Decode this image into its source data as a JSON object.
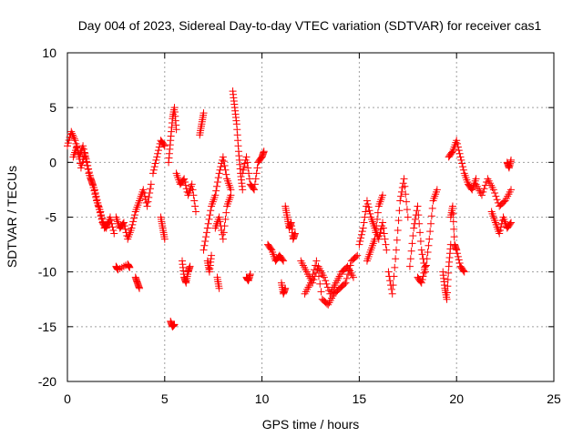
{
  "chart_data": {
    "type": "scatter",
    "title": "Day 004 of 2023, Sidereal Day-to-day VTEC variation (SDTVAR) for receiver cas1",
    "xlabel": "GPS time / hours",
    "ylabel": "SDTVAR / TECUs",
    "xlim": [
      0,
      25
    ],
    "ylim": [
      -20,
      10
    ],
    "xticks": [
      0,
      5,
      10,
      15,
      20,
      25
    ],
    "yticks": [
      -20,
      -15,
      -10,
      -5,
      0,
      5,
      10
    ],
    "grid": true,
    "marker": "+",
    "color": "#ff0000",
    "series": [
      {
        "name": "SDTVAR",
        "segments": [
          {
            "x": [
              0.0,
              0.2,
              0.4,
              0.6,
              0.8,
              1.0,
              1.2,
              1.4,
              1.6,
              1.8,
              2.0,
              2.2,
              2.4
            ],
            "y": [
              1.5,
              2.8,
              2.0,
              0.5,
              1.5,
              0.0,
              -1.5,
              -2.5,
              -4.0,
              -5.5,
              -6.0,
              -5.0,
              -6.5
            ]
          },
          {
            "x": [
              0.3,
              0.5,
              0.7,
              0.9,
              1.1,
              1.3,
              1.5,
              1.7,
              1.9,
              2.1
            ],
            "y": [
              0.5,
              1.5,
              -0.5,
              0.8,
              -1.0,
              -2.0,
              -3.5,
              -4.5,
              -6.0,
              -5.5
            ]
          },
          {
            "x": [
              2.5,
              2.7,
              2.9,
              3.1,
              3.3,
              3.5,
              3.7,
              3.9,
              4.1,
              4.3
            ],
            "y": [
              -5.0,
              -6.0,
              -5.5,
              -7.0,
              -6.0,
              -4.5,
              -3.5,
              -2.5,
              -4.0,
              -2.0
            ]
          },
          {
            "x": [
              2.5,
              2.6,
              3.1,
              3.2
            ],
            "y": [
              -9.5,
              -9.8,
              -9.3,
              -9.6
            ]
          },
          {
            "x": [
              3.5,
              3.6,
              3.7
            ],
            "y": [
              -10.5,
              -11.0,
              -11.5
            ]
          },
          {
            "x": [
              4.4,
              4.6,
              4.8,
              5.0
            ],
            "y": [
              -1.0,
              0.5,
              2.0,
              1.5
            ]
          },
          {
            "x": [
              4.8,
              4.9,
              5.0
            ],
            "y": [
              -5.0,
              -6.0,
              -7.0
            ]
          },
          {
            "x": [
              5.2,
              5.3,
              5.4,
              5.5,
              5.6
            ],
            "y": [
              0.0,
              2.0,
              4.0,
              5.0,
              3.0
            ]
          },
          {
            "x": [
              5.3,
              5.4,
              5.5
            ],
            "y": [
              -14.5,
              -15.0,
              -14.8
            ]
          },
          {
            "x": [
              5.6,
              5.8,
              6.0,
              6.2,
              6.4,
              6.6
            ],
            "y": [
              -1.0,
              -2.0,
              -1.5,
              -3.0,
              -2.0,
              -4.5
            ]
          },
          {
            "x": [
              5.9,
              6.0,
              6.1,
              6.2,
              6.3
            ],
            "y": [
              -9.0,
              -10.5,
              -11.0,
              -10.0,
              -9.5
            ]
          },
          {
            "x": [
              6.8,
              6.9,
              7.0
            ],
            "y": [
              2.5,
              3.5,
              4.5
            ]
          },
          {
            "x": [
              7.0,
              7.2,
              7.4,
              7.6,
              7.8,
              8.0,
              8.2,
              8.4
            ],
            "y": [
              -8.0,
              -6.0,
              -4.0,
              -3.0,
              -1.0,
              0.5,
              -1.5,
              -2.5
            ]
          },
          {
            "x": [
              7.2,
              7.3,
              7.4
            ],
            "y": [
              -9.0,
              -10.0,
              -8.5
            ]
          },
          {
            "x": [
              7.6,
              7.8,
              8.0,
              8.2,
              8.4
            ],
            "y": [
              -6.0,
              -5.0,
              -7.0,
              -4.0,
              -3.0
            ]
          },
          {
            "x": [
              7.7,
              7.8
            ],
            "y": [
              -10.5,
              -11.5
            ]
          },
          {
            "x": [
              8.5,
              8.6,
              8.7,
              8.8,
              8.9,
              9.0
            ],
            "y": [
              6.5,
              5.0,
              3.5,
              1.0,
              -1.0,
              -2.5
            ]
          },
          {
            "x": [
              9.0,
              9.2,
              9.4,
              9.6,
              9.8,
              10.0,
              10.1
            ],
            "y": [
              -1.0,
              0.5,
              -2.0,
              -2.5,
              0.0,
              0.5,
              1.0
            ]
          },
          {
            "x": [
              9.2,
              9.3,
              9.4
            ],
            "y": [
              -10.5,
              -10.8,
              -10.2
            ]
          },
          {
            "x": [
              10.3,
              10.5,
              10.7,
              10.9,
              11.1
            ],
            "y": [
              -7.5,
              -8.0,
              -9.0,
              -8.5,
              -9.0
            ]
          },
          {
            "x": [
              11.2,
              11.3,
              11.4,
              11.5,
              11.6,
              11.7
            ],
            "y": [
              -4.0,
              -5.0,
              -6.0,
              -5.5,
              -7.0,
              -6.5
            ]
          },
          {
            "x": [
              11.0,
              11.1,
              11.2
            ],
            "y": [
              -11.0,
              -12.0,
              -11.5
            ]
          },
          {
            "x": [
              12.0,
              12.3,
              12.6,
              12.9,
              13.2,
              13.5,
              13.8,
              14.1,
              14.4,
              14.7
            ],
            "y": [
              -9.0,
              -10.0,
              -11.0,
              -9.5,
              -10.5,
              -12.0,
              -11.0,
              -10.0,
              -9.5,
              -10.5
            ]
          },
          {
            "x": [
              12.2,
              12.5,
              12.8,
              13.1,
              13.4,
              13.7,
              14.0,
              14.3,
              14.6,
              14.9
            ],
            "y": [
              -12.0,
              -11.0,
              -9.0,
              -12.5,
              -13.0,
              -12.0,
              -11.5,
              -11.0,
              -9.0,
              -8.5
            ]
          },
          {
            "x": [
              15.0,
              15.2,
              15.4,
              15.6,
              15.8,
              16.0,
              16.2,
              16.4
            ],
            "y": [
              -7.5,
              -6.0,
              -3.5,
              -5.0,
              -6.0,
              -7.0,
              -5.5,
              -8.0
            ]
          },
          {
            "x": [
              15.4,
              15.6,
              15.8,
              16.0,
              16.2
            ],
            "y": [
              -9.0,
              -8.0,
              -7.0,
              -4.0,
              -3.0
            ]
          },
          {
            "x": [
              16.5,
              16.7,
              16.9,
              17.1,
              17.3,
              17.5
            ],
            "y": [
              -10.0,
              -12.0,
              -8.0,
              -3.5,
              -1.5,
              -5.0
            ]
          },
          {
            "x": [
              17.6,
              17.8,
              18.0,
              18.2,
              18.4,
              18.6,
              18.8,
              19.0
            ],
            "y": [
              -9.5,
              -6.0,
              -4.0,
              -8.0,
              -10.0,
              -7.0,
              -3.5,
              -2.5
            ]
          },
          {
            "x": [
              18.0,
              18.2,
              18.4
            ],
            "y": [
              -10.5,
              -11.0,
              -9.5
            ]
          },
          {
            "x": [
              19.3,
              19.4,
              19.5,
              19.6,
              19.7
            ],
            "y": [
              -10.0,
              -11.5,
              -12.5,
              -9.5,
              -7.5
            ]
          },
          {
            "x": [
              19.6,
              19.8,
              20.0,
              20.2,
              20.4,
              20.6,
              20.8,
              21.0
            ],
            "y": [
              0.5,
              1.0,
              2.0,
              0.5,
              -1.0,
              -2.0,
              -2.5,
              -1.5
            ]
          },
          {
            "x": [
              19.7,
              19.8,
              19.9,
              20.0,
              20.2,
              20.4
            ],
            "y": [
              -5.0,
              -4.0,
              -7.5,
              -8.0,
              -9.5,
              -10.0
            ]
          },
          {
            "x": [
              21.0,
              21.3,
              21.6,
              21.9,
              22.2,
              22.5,
              22.8
            ],
            "y": [
              -2.0,
              -3.0,
              -1.5,
              -2.5,
              -4.0,
              -3.5,
              -2.5
            ]
          },
          {
            "x": [
              21.8,
              22.0,
              22.2,
              22.4,
              22.6,
              22.8
            ],
            "y": [
              -4.5,
              -5.5,
              -6.5,
              -5.0,
              -6.0,
              -5.5
            ]
          },
          {
            "x": [
              22.6,
              22.7,
              22.8
            ],
            "y": [
              0.0,
              -0.5,
              0.2
            ]
          }
        ]
      }
    ]
  }
}
